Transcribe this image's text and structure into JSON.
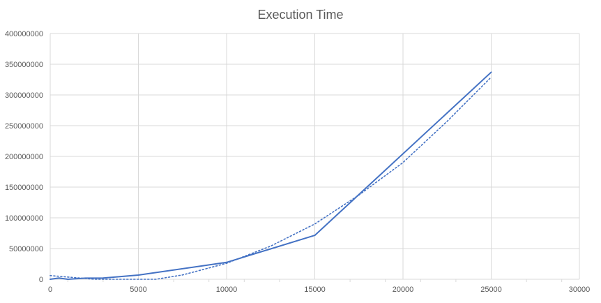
{
  "chart_data": {
    "type": "line",
    "title": "Execution Time",
    "xlabel": "",
    "ylabel": "",
    "xlim": [
      0,
      30000
    ],
    "ylim": [
      0,
      400000000
    ],
    "x_ticks": [
      0,
      5000,
      10000,
      15000,
      20000,
      25000,
      30000
    ],
    "y_ticks": [
      0,
      50000000,
      100000000,
      150000000,
      200000000,
      250000000,
      300000000,
      350000000,
      400000000
    ],
    "grid": true,
    "legend": "none",
    "series": [
      {
        "values_x": [
          0,
          500,
          1000,
          2000,
          3000,
          5000,
          10000,
          15000,
          25000
        ],
        "values_y": [
          0,
          2000000,
          0,
          1800000,
          2000000,
          6800000,
          27500000,
          71500000,
          337000000
        ],
        "color": "#4472C4",
        "line_style": "solid"
      },
      {
        "trendline": "polynomial (order 2)",
        "values_x": [
          0,
          2500,
          5000,
          6000,
          7500,
          10000,
          12500,
          15000,
          17500,
          20000,
          22500,
          25000
        ],
        "values_y": [
          6000000,
          0,
          0,
          0,
          7000000,
          26000000,
          54000000,
          90000000,
          137000000,
          190000000,
          257000000,
          329000000
        ],
        "color": "#4472C4",
        "line_style": "dotted"
      }
    ]
  },
  "colors": {
    "axis_text": "#595959",
    "grid": "#D9D9D9",
    "series": "#4472C4"
  }
}
